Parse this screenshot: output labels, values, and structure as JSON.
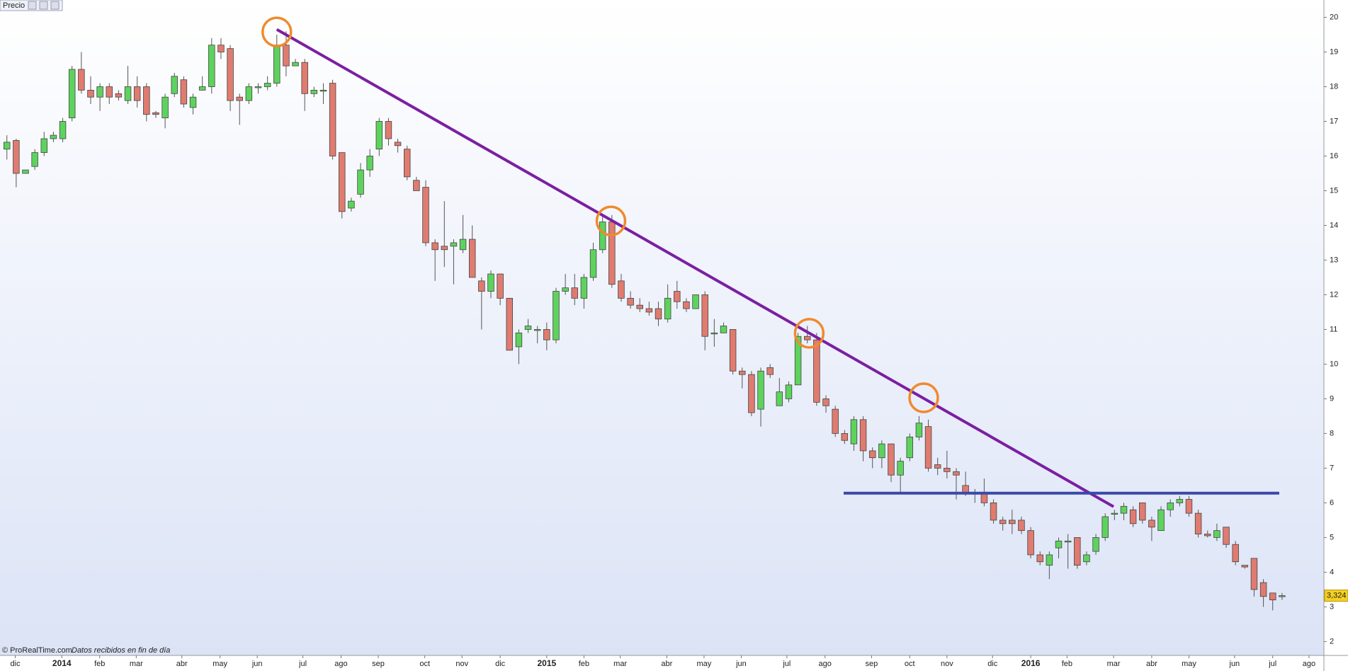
{
  "chart_data": {
    "type": "candlestick",
    "title": "Precio",
    "footer": "© ProRealTime.com",
    "footer_note": "Datos recibidos en fin de día",
    "up_color": "#5dd35d",
    "down_color": "#e07b70",
    "open": [
      16.2,
      16.45,
      15.5,
      15.7,
      16.1,
      16.5,
      16.5,
      17.1,
      18.5,
      17.9,
      17.7,
      18.0,
      17.8,
      17.6,
      18.0,
      18.0,
      17.25,
      17.1,
      17.8,
      18.2,
      17.4,
      17.9,
      18.0,
      19.2,
      19.1,
      17.7,
      17.6,
      18.0,
      18.0,
      18.1,
      19.2,
      18.6,
      18.7,
      17.8,
      17.9,
      18.1,
      16.1,
      14.5,
      14.9,
      15.6,
      16.2,
      17.0,
      16.4,
      16.2,
      15.3,
      15.1,
      13.5,
      13.4,
      13.4,
      13.3,
      13.6,
      12.4,
      12.1,
      12.6,
      11.9,
      10.5,
      11.0,
      11.0,
      11.0,
      10.7,
      12.1,
      12.2,
      11.9,
      12.5,
      13.3,
      14.1,
      12.4,
      11.9,
      11.7,
      11.6,
      11.6,
      11.3,
      12.1,
      11.8,
      11.6,
      12.0,
      10.9,
      10.9,
      11.0,
      9.8,
      9.7,
      8.7,
      9.9,
      8.8,
      9.0,
      9.4,
      10.8,
      10.7,
      9.0,
      8.7,
      8.0,
      7.7,
      8.4,
      7.5,
      7.3,
      7.7,
      6.8,
      7.3,
      7.9,
      8.2,
      7.1,
      7.0,
      6.9,
      6.5,
      6.3,
      6.3,
      6.0,
      5.5,
      5.5,
      5.5,
      5.2,
      4.5,
      4.2,
      4.7,
      4.9,
      5.0,
      4.3,
      4.6,
      5.0,
      5.7,
      5.7,
      5.8,
      6.0,
      5.5,
      5.2,
      5.8,
      6.0,
      6.1,
      5.7,
      5.1,
      5.0,
      5.3,
      4.8,
      4.2,
      4.4,
      3.7,
      3.4,
      3.3
    ],
    "high": [
      16.6,
      16.5,
      15.6,
      16.2,
      16.7,
      16.7,
      17.1,
      18.6,
      19.0,
      18.3,
      18.1,
      18.1,
      17.9,
      18.6,
      18.3,
      18.1,
      17.3,
      17.8,
      18.4,
      18.3,
      17.8,
      18.3,
      19.4,
      19.4,
      19.2,
      17.8,
      18.1,
      18.1,
      18.3,
      19.5,
      19.6,
      18.8,
      18.8,
      18.0,
      18.1,
      18.2,
      16.1,
      14.8,
      15.8,
      16.2,
      17.1,
      17.1,
      16.5,
      16.3,
      15.4,
      15.3,
      13.6,
      14.7,
      13.6,
      14.3,
      14.0,
      12.5,
      12.7,
      12.6,
      11.9,
      11.0,
      11.3,
      11.1,
      11.2,
      12.2,
      12.6,
      12.6,
      12.6,
      13.5,
      14.3,
      14.3,
      12.6,
      12.1,
      11.9,
      11.8,
      11.8,
      12.3,
      12.4,
      11.9,
      12.0,
      12.1,
      11.3,
      11.2,
      11.0,
      9.9,
      9.8,
      9.9,
      10.0,
      9.6,
      9.5,
      10.9,
      11.1,
      10.9,
      9.1,
      8.8,
      8.1,
      8.5,
      8.5,
      7.6,
      7.8,
      7.7,
      7.3,
      8.0,
      8.5,
      8.4,
      7.3,
      7.5,
      7.0,
      6.9,
      6.4,
      6.7,
      6.1,
      5.6,
      5.8,
      5.6,
      5.3,
      4.6,
      4.6,
      5.0,
      5.1,
      5.0,
      4.6,
      5.1,
      5.7,
      5.8,
      6.0,
      5.9,
      6.0,
      5.6,
      5.9,
      6.1,
      6.2,
      6.2,
      5.8,
      5.2,
      5.4,
      5.3,
      4.9,
      4.2,
      4.4,
      3.8,
      3.4,
      3.4
    ],
    "low": [
      15.9,
      15.1,
      15.5,
      15.6,
      16.0,
      16.4,
      16.4,
      17.0,
      17.8,
      17.5,
      17.3,
      17.5,
      17.6,
      17.5,
      17.4,
      17.0,
      17.1,
      16.8,
      17.7,
      17.4,
      17.2,
      17.9,
      17.8,
      18.8,
      17.3,
      16.9,
      17.5,
      17.8,
      17.9,
      18.0,
      18.3,
      18.6,
      17.3,
      17.7,
      17.5,
      15.9,
      14.2,
      14.4,
      14.8,
      15.4,
      16.0,
      16.3,
      16.1,
      15.3,
      15.0,
      13.4,
      12.4,
      12.8,
      12.3,
      13.2,
      12.5,
      11.0,
      11.9,
      11.7,
      10.4,
      10.0,
      10.9,
      10.6,
      10.4,
      10.6,
      12.0,
      11.7,
      11.6,
      12.4,
      13.2,
      12.2,
      11.8,
      11.6,
      11.5,
      11.4,
      11.1,
      11.2,
      11.6,
      11.5,
      11.6,
      10.4,
      10.5,
      10.9,
      9.7,
      9.3,
      8.5,
      8.2,
      9.6,
      8.8,
      8.9,
      9.4,
      10.6,
      8.8,
      8.6,
      7.9,
      7.7,
      7.5,
      7.2,
      7.0,
      7.0,
      6.6,
      6.3,
      7.2,
      7.8,
      6.9,
      6.8,
      6.7,
      6.1,
      6.2,
      6.0,
      5.9,
      5.4,
      5.2,
      5.1,
      5.1,
      4.4,
      4.2,
      3.8,
      4.4,
      4.1,
      4.1,
      4.2,
      4.5,
      4.9,
      5.5,
      5.5,
      5.3,
      5.4,
      4.9,
      5.2,
      5.6,
      5.9,
      5.6,
      5.0,
      5.0,
      4.9,
      4.7,
      4.2,
      4.1,
      3.3,
      3.0,
      2.9,
      3.2
    ],
    "close": [
      16.4,
      15.5,
      15.6,
      16.1,
      16.5,
      16.6,
      17.0,
      18.5,
      17.9,
      17.7,
      18.0,
      17.7,
      17.7,
      18.0,
      17.6,
      17.2,
      17.2,
      17.7,
      18.3,
      17.5,
      17.7,
      18.0,
      19.2,
      19.0,
      17.6,
      17.6,
      18.0,
      18.0,
      18.1,
      19.2,
      18.6,
      18.7,
      17.8,
      17.9,
      17.9,
      16.0,
      14.4,
      14.7,
      15.6,
      16.0,
      17.0,
      16.5,
      16.3,
      15.4,
      15.0,
      13.5,
      13.3,
      13.3,
      13.5,
      13.6,
      12.5,
      12.1,
      12.6,
      11.9,
      10.4,
      10.9,
      11.1,
      11.0,
      10.7,
      12.1,
      12.2,
      11.9,
      12.5,
      13.3,
      14.1,
      12.3,
      11.9,
      11.7,
      11.6,
      11.5,
      11.3,
      11.9,
      11.8,
      11.6,
      12.0,
      10.8,
      10.9,
      11.1,
      9.8,
      9.7,
      8.6,
      9.8,
      9.7,
      9.2,
      9.4,
      10.8,
      10.7,
      8.9,
      8.8,
      8.0,
      7.8,
      8.4,
      7.5,
      7.3,
      7.7,
      6.8,
      7.2,
      7.9,
      8.3,
      7.0,
      7.0,
      6.9,
      6.8,
      6.3,
      6.25,
      6.0,
      5.5,
      5.4,
      5.4,
      5.2,
      4.5,
      4.3,
      4.5,
      4.9,
      4.9,
      4.2,
      4.5,
      5.0,
      5.6,
      5.7,
      5.9,
      5.4,
      5.5,
      5.3,
      5.8,
      6.0,
      6.1,
      5.7,
      5.1,
      5.05,
      5.2,
      4.8,
      4.3,
      4.15,
      3.5,
      3.3,
      3.2,
      3.324
    ],
    "last_price": {
      "value": 3.324,
      "label": "3,324"
    },
    "xlim": [
      -0.74,
      141.5
    ],
    "xticks": [
      {
        "value": 0.9,
        "label": "dic"
      },
      {
        "value": 5.9,
        "label": "2014"
      },
      {
        "value": 9.97,
        "label": "feb"
      },
      {
        "value": 13.9,
        "label": "mar"
      },
      {
        "value": 18.8,
        "label": "abr"
      },
      {
        "value": 22.9,
        "label": "may"
      },
      {
        "value": 26.9,
        "label": "jun"
      },
      {
        "value": 31.8,
        "label": "jul"
      },
      {
        "value": 35.9,
        "label": "ago"
      },
      {
        "value": 39.9,
        "label": "sep"
      },
      {
        "value": 44.9,
        "label": "oct"
      },
      {
        "value": 48.9,
        "label": "nov"
      },
      {
        "value": 53.0,
        "label": "dic"
      },
      {
        "value": 58.0,
        "label": "2015"
      },
      {
        "value": 62.0,
        "label": "feb"
      },
      {
        "value": 65.9,
        "label": "mar"
      },
      {
        "value": 70.9,
        "label": "abr"
      },
      {
        "value": 74.9,
        "label": "may"
      },
      {
        "value": 78.9,
        "label": "jun"
      },
      {
        "value": 83.8,
        "label": "jul"
      },
      {
        "value": 87.9,
        "label": "ago"
      },
      {
        "value": 92.9,
        "label": "sep"
      },
      {
        "value": 97.0,
        "label": "oct"
      },
      {
        "value": 101.0,
        "label": "nov"
      },
      {
        "value": 105.9,
        "label": "dic"
      },
      {
        "value": 110.0,
        "label": "2016"
      },
      {
        "value": 113.9,
        "label": "feb"
      },
      {
        "value": 118.9,
        "label": "mar"
      },
      {
        "value": 123.0,
        "label": "abr"
      },
      {
        "value": 127.0,
        "label": "may"
      },
      {
        "value": 131.9,
        "label": "jun"
      },
      {
        "value": 136.0,
        "label": "jul"
      },
      {
        "value": 139.9,
        "label": "ago"
      }
    ],
    "ylim": [
      1.6,
      20.5
    ],
    "yticks": [
      2,
      3,
      4,
      5,
      6,
      7,
      8,
      9,
      10,
      11,
      12,
      13,
      14,
      15,
      16,
      17,
      18,
      19,
      20
    ],
    "trendlines": [
      {
        "color": "#7b1fa2",
        "x": [
          29.0,
          118.9
        ],
        "y": [
          19.65,
          5.89
        ]
      },
      {
        "color": "#3949ab",
        "x": [
          89.9,
          136.7
        ],
        "y": [
          6.28,
          6.28
        ]
      }
    ],
    "circles": {
      "color": "#f08a2c",
      "x": [
        29.0,
        64.9,
        86.2,
        98.5
      ],
      "y": [
        19.58,
        14.13,
        10.89,
        9.03
      ]
    }
  }
}
